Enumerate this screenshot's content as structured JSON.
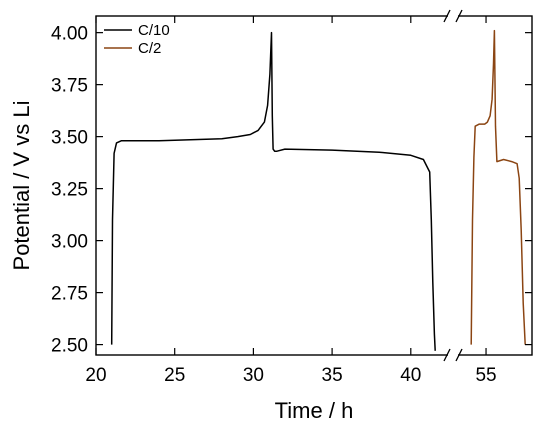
{
  "chart_data": {
    "type": "line",
    "xlabel": "Time / h",
    "ylabel": "Potential / V vs Li",
    "xlim_left": [
      20,
      42.3
    ],
    "xlim_right": [
      53,
      58.4
    ],
    "ylim": [
      2.45,
      4.08
    ],
    "axis_break": "x",
    "xticks": [
      20,
      25,
      30,
      35,
      40,
      55
    ],
    "yticks": [
      2.5,
      2.75,
      3.0,
      3.25,
      3.5,
      3.75,
      4.0
    ],
    "grid": false,
    "legend": "top-left",
    "series": [
      {
        "name": "C/10",
        "color": "#000000",
        "x": [
          21.0,
          21.05,
          21.15,
          21.3,
          21.6,
          22.0,
          24.0,
          26.0,
          28.0,
          29.0,
          29.8,
          30.3,
          30.7,
          30.9,
          31.05,
          31.15,
          31.2,
          31.25,
          31.35,
          31.5,
          32.0,
          35.0,
          38.0,
          40.0,
          40.8,
          41.2,
          41.3,
          41.4,
          41.5,
          41.55
        ],
        "y": [
          2.5,
          3.1,
          3.42,
          3.47,
          3.48,
          3.48,
          3.48,
          3.485,
          3.49,
          3.5,
          3.51,
          3.53,
          3.57,
          3.65,
          3.8,
          4.0,
          3.6,
          3.44,
          3.43,
          3.43,
          3.44,
          3.435,
          3.425,
          3.41,
          3.39,
          3.33,
          3.1,
          2.8,
          2.55,
          2.47
        ]
      },
      {
        "name": "C/2",
        "color": "#8b4513",
        "x": [
          53.9,
          54.0,
          54.1,
          54.2,
          54.5,
          54.9,
          55.1,
          55.3,
          55.45,
          55.55,
          55.62,
          55.7,
          55.8,
          56.3,
          56.9,
          57.3,
          57.45,
          57.6,
          57.75,
          57.9
        ],
        "y": [
          2.5,
          3.1,
          3.4,
          3.55,
          3.56,
          3.56,
          3.57,
          3.6,
          3.68,
          3.85,
          4.01,
          3.55,
          3.38,
          3.39,
          3.38,
          3.37,
          3.3,
          3.05,
          2.7,
          2.5
        ]
      }
    ]
  }
}
